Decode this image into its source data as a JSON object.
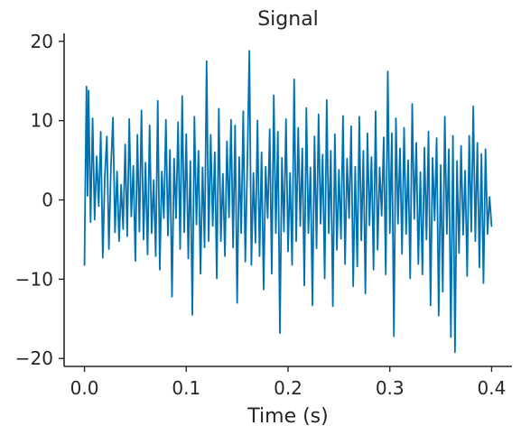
{
  "chart_data": {
    "type": "line",
    "title": "Signal",
    "xlabel": "Time (s)",
    "ylabel": "",
    "xlim": [
      -0.02,
      0.42
    ],
    "ylim": [
      -21,
      21
    ],
    "x_ticks": [
      0.0,
      0.1,
      0.2,
      0.3,
      0.4
    ],
    "x_tick_labels": [
      "0.0",
      "0.1",
      "0.2",
      "0.3",
      "0.4"
    ],
    "y_ticks": [
      20,
      10,
      0,
      -10,
      -20
    ],
    "y_tick_labels": [
      "20",
      "10",
      "0",
      "−10",
      "−20"
    ],
    "grid": false,
    "legend": "none",
    "series": [
      {
        "color": "#0072b2",
        "x_start": 0.0,
        "x_end": 0.4,
        "anchors": [
          [
            0.0,
            -8.3
          ],
          [
            0.0009,
            3.2
          ],
          [
            0.002,
            14.3
          ],
          [
            0.003,
            0.5
          ],
          [
            0.004,
            13.8
          ],
          [
            0.006,
            -2.8
          ],
          [
            0.008,
            10.3
          ],
          [
            0.01,
            -2.5
          ],
          [
            0.012,
            5.5
          ],
          [
            0.014,
            -0.8
          ],
          [
            0.016,
            8.6
          ],
          [
            0.018,
            -7.3
          ],
          [
            0.02,
            3.0
          ],
          [
            0.022,
            8.0
          ],
          [
            0.024,
            -6.2
          ],
          [
            0.026,
            4.1
          ],
          [
            0.028,
            10.4
          ],
          [
            0.03,
            -4.1
          ],
          [
            0.032,
            3.6
          ],
          [
            0.034,
            -5.2
          ],
          [
            0.036,
            1.9
          ],
          [
            0.038,
            -3.7
          ],
          [
            0.04,
            7.0
          ],
          [
            0.042,
            -4.6
          ],
          [
            0.044,
            10.2
          ],
          [
            0.046,
            -2.1
          ],
          [
            0.048,
            4.3
          ],
          [
            0.05,
            -7.7
          ],
          [
            0.052,
            8.2
          ],
          [
            0.054,
            -4.0
          ],
          [
            0.056,
            11.3
          ],
          [
            0.058,
            -5.0
          ],
          [
            0.06,
            4.7
          ],
          [
            0.062,
            -6.9
          ],
          [
            0.064,
            9.4
          ],
          [
            0.066,
            -4.2
          ],
          [
            0.068,
            2.5
          ],
          [
            0.07,
            -7.1
          ],
          [
            0.072,
            12.5
          ],
          [
            0.074,
            -8.8
          ],
          [
            0.076,
            3.6
          ],
          [
            0.078,
            -2.3
          ],
          [
            0.08,
            10.1
          ],
          [
            0.082,
            -4.5
          ],
          [
            0.084,
            6.3
          ],
          [
            0.086,
            -12.2
          ],
          [
            0.088,
            5.2
          ],
          [
            0.09,
            -2.3
          ],
          [
            0.092,
            9.8
          ],
          [
            0.094,
            -6.2
          ],
          [
            0.096,
            13.1
          ],
          [
            0.098,
            -4.1
          ],
          [
            0.1,
            8.3
          ],
          [
            0.102,
            -7.4
          ],
          [
            0.104,
            4.9
          ],
          [
            0.106,
            -14.5
          ],
          [
            0.108,
            10.5
          ],
          [
            0.11,
            -3.1
          ],
          [
            0.112,
            6.2
          ],
          [
            0.114,
            -9.3
          ],
          [
            0.116,
            4.1
          ],
          [
            0.118,
            -6.0
          ],
          [
            0.12,
            17.5
          ],
          [
            0.122,
            -5.2
          ],
          [
            0.124,
            8.2
          ],
          [
            0.126,
            -3.3
          ],
          [
            0.128,
            6.0
          ],
          [
            0.13,
            -9.9
          ],
          [
            0.132,
            11.5
          ],
          [
            0.134,
            -5.2
          ],
          [
            0.136,
            3.3
          ],
          [
            0.138,
            -7.1
          ],
          [
            0.14,
            7.4
          ],
          [
            0.142,
            -2.2
          ],
          [
            0.144,
            10.1
          ],
          [
            0.146,
            -6.0
          ],
          [
            0.148,
            9.4
          ],
          [
            0.15,
            -13.0
          ],
          [
            0.152,
            5.4
          ],
          [
            0.154,
            -4.2
          ],
          [
            0.156,
            11.2
          ],
          [
            0.158,
            -7.8
          ],
          [
            0.16,
            4.5
          ],
          [
            0.162,
            18.8
          ],
          [
            0.164,
            -8.2
          ],
          [
            0.166,
            3.4
          ],
          [
            0.168,
            -5.4
          ],
          [
            0.17,
            10.0
          ],
          [
            0.172,
            -7.1
          ],
          [
            0.174,
            6.0
          ],
          [
            0.176,
            -11.3
          ],
          [
            0.178,
            4.2
          ],
          [
            0.18,
            -2.3
          ],
          [
            0.182,
            8.9
          ],
          [
            0.184,
            -9.3
          ],
          [
            0.186,
            13.2
          ],
          [
            0.188,
            -4.2
          ],
          [
            0.19,
            8.6
          ],
          [
            0.192,
            -16.8
          ],
          [
            0.194,
            5.3
          ],
          [
            0.196,
            -4.0
          ],
          [
            0.198,
            10.2
          ],
          [
            0.2,
            -6.5
          ],
          [
            0.202,
            3.4
          ],
          [
            0.204,
            -8.2
          ],
          [
            0.206,
            15.2
          ],
          [
            0.208,
            -5.2
          ],
          [
            0.21,
            9.1
          ],
          [
            0.212,
            -3.3
          ],
          [
            0.214,
            6.5
          ],
          [
            0.216,
            -10.8
          ],
          [
            0.218,
            11.6
          ],
          [
            0.22,
            -4.2
          ],
          [
            0.222,
            4.1
          ],
          [
            0.224,
            -13.3
          ],
          [
            0.226,
            8.0
          ],
          [
            0.228,
            -6.1
          ],
          [
            0.23,
            10.8
          ],
          [
            0.232,
            -3.0
          ],
          [
            0.234,
            5.7
          ],
          [
            0.236,
            -9.9
          ],
          [
            0.238,
            12.6
          ],
          [
            0.24,
            -4.2
          ],
          [
            0.242,
            6.2
          ],
          [
            0.244,
            -13.4
          ],
          [
            0.246,
            8.3
          ],
          [
            0.248,
            -6.3
          ],
          [
            0.25,
            3.8
          ],
          [
            0.252,
            -4.9
          ],
          [
            0.254,
            10.6
          ],
          [
            0.256,
            -8.1
          ],
          [
            0.258,
            5.2
          ],
          [
            0.26,
            -2.3
          ],
          [
            0.262,
            9.3
          ],
          [
            0.264,
            -10.9
          ],
          [
            0.266,
            4.2
          ],
          [
            0.268,
            -8.4
          ],
          [
            0.27,
            10.5
          ],
          [
            0.272,
            -5.1
          ],
          [
            0.274,
            6.2
          ],
          [
            0.276,
            -11.8
          ],
          [
            0.278,
            8.4
          ],
          [
            0.28,
            -3.2
          ],
          [
            0.282,
            5.4
          ],
          [
            0.284,
            -8.8
          ],
          [
            0.286,
            11.2
          ],
          [
            0.288,
            -6.3
          ],
          [
            0.29,
            4.1
          ],
          [
            0.292,
            -2.0
          ],
          [
            0.294,
            7.9
          ],
          [
            0.296,
            -9.4
          ],
          [
            0.298,
            16.2
          ],
          [
            0.3,
            -4.2
          ],
          [
            0.302,
            8.4
          ],
          [
            0.304,
            -17.2
          ],
          [
            0.306,
            10.3
          ],
          [
            0.308,
            -3.0
          ],
          [
            0.31,
            6.5
          ],
          [
            0.312,
            -6.8
          ],
          [
            0.314,
            9.1
          ],
          [
            0.316,
            -4.3
          ],
          [
            0.318,
            5.0
          ],
          [
            0.32,
            -9.9
          ],
          [
            0.322,
            12.1
          ],
          [
            0.324,
            -2.4
          ],
          [
            0.326,
            7.2
          ],
          [
            0.328,
            -8.1
          ],
          [
            0.33,
            3.5
          ],
          [
            0.332,
            -9.4
          ],
          [
            0.334,
            6.6
          ],
          [
            0.336,
            -5.0
          ],
          [
            0.338,
            8.6
          ],
          [
            0.34,
            -13.3
          ],
          [
            0.342,
            5.3
          ],
          [
            0.344,
            -2.6
          ],
          [
            0.346,
            7.8
          ],
          [
            0.348,
            -14.6
          ],
          [
            0.35,
            4.4
          ],
          [
            0.352,
            -11.6
          ],
          [
            0.354,
            10.5
          ],
          [
            0.356,
            -4.3
          ],
          [
            0.358,
            6.4
          ],
          [
            0.36,
            -17.3
          ],
          [
            0.362,
            8.1
          ],
          [
            0.364,
            -19.2
          ],
          [
            0.366,
            4.9
          ],
          [
            0.368,
            -6.7
          ],
          [
            0.37,
            6.8
          ],
          [
            0.372,
            -4.4
          ],
          [
            0.374,
            3.7
          ],
          [
            0.376,
            -9.6
          ],
          [
            0.378,
            8.1
          ],
          [
            0.38,
            -4.0
          ],
          [
            0.382,
            11.8
          ],
          [
            0.384,
            -5.2
          ],
          [
            0.386,
            7.2
          ],
          [
            0.388,
            -8.5
          ],
          [
            0.39,
            5.8
          ],
          [
            0.392,
            -10.5
          ],
          [
            0.394,
            6.4
          ],
          [
            0.396,
            -4.3
          ],
          [
            0.398,
            0.4
          ],
          [
            0.4,
            -3.4
          ]
        ]
      }
    ]
  }
}
